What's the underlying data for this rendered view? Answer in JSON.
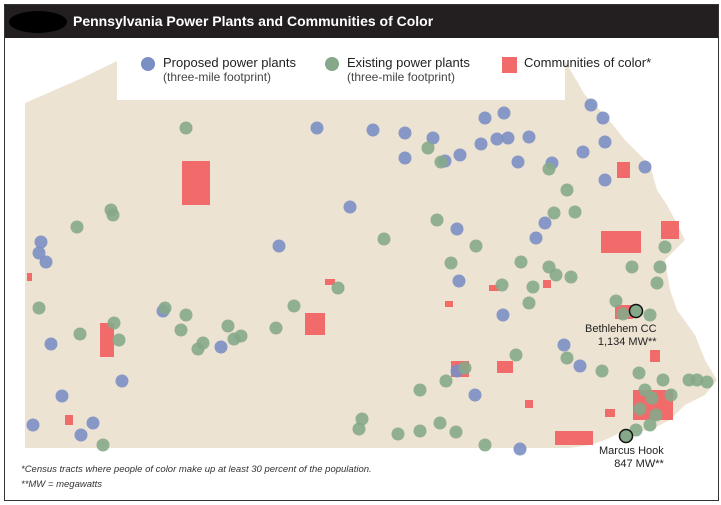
{
  "title": "Pennsylvania Power Plants and Communities of Color",
  "legend": [
    {
      "label": "Proposed power plants",
      "sublabel": "(three-mile footprint)",
      "color": "#7b8fc4",
      "shape": "circle"
    },
    {
      "label": "Existing power plants",
      "sublabel": "(three-mile footprint)",
      "color": "#86a88a",
      "shape": "circle"
    },
    {
      "label": "Communities of color*",
      "color": "#f26b6b",
      "shape": "square"
    }
  ],
  "annotations": [
    {
      "name": "Bethlehem CC",
      "value": "1,134 MW**"
    },
    {
      "name": "Marcus Hook",
      "value": "847 MW**"
    }
  ],
  "footnotes": [
    "*Census tracts where people of color make up at least 30 percent of the population.",
    "**MW = megawatts"
  ],
  "colors": {
    "land": "#ede3d3",
    "header": "#231f20",
    "proposed": "#7b8fc4",
    "existing": "#86a88a",
    "communities": "#f26b6b"
  }
}
